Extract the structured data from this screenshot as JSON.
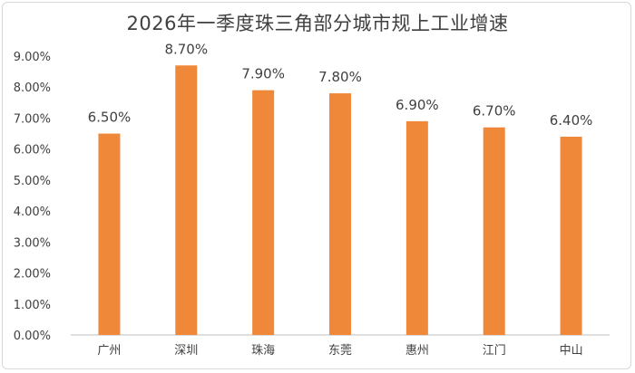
{
  "chart_data": {
    "type": "bar",
    "title": "2026年一季度珠三角部分城市规上工业增速",
    "categories": [
      "广州",
      "深圳",
      "珠海",
      "东莞",
      "惠州",
      "江门",
      "中山"
    ],
    "values": [
      6.5,
      8.7,
      7.9,
      7.8,
      6.9,
      6.7,
      6.4
    ],
    "data_labels": [
      "6.50%",
      "8.70%",
      "7.90%",
      "7.80%",
      "6.90%",
      "6.70%",
      "6.40%"
    ],
    "y_ticks": [
      "0.00%",
      "1.00%",
      "2.00%",
      "3.00%",
      "4.00%",
      "5.00%",
      "6.00%",
      "7.00%",
      "8.00%",
      "9.00%"
    ],
    "ylim": [
      0,
      9
    ],
    "xlabel": "",
    "ylabel": "",
    "grid": false,
    "legend": "none",
    "bar_color": "#F0883A",
    "text_color": "#404040",
    "axis_color": "#BFBFBF"
  }
}
